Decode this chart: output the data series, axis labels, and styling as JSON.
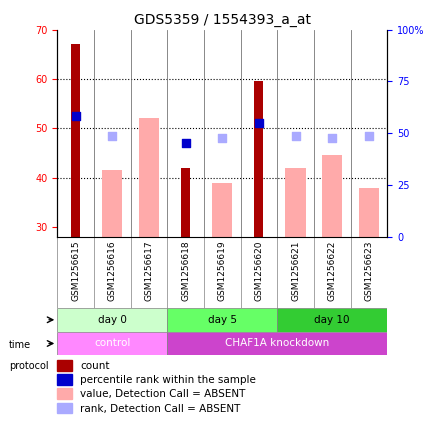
{
  "title": "GDS5359 / 1554393_a_at",
  "samples": [
    "GSM1256615",
    "GSM1256616",
    "GSM1256617",
    "GSM1256618",
    "GSM1256619",
    "GSM1256620",
    "GSM1256621",
    "GSM1256622",
    "GSM1256623"
  ],
  "count_values": [
    67.0,
    null,
    null,
    42.0,
    null,
    59.5,
    null,
    null,
    null
  ],
  "percentile_values": [
    52.5,
    null,
    null,
    47.0,
    null,
    51.0,
    null,
    null,
    null
  ],
  "absent_value_values": [
    null,
    41.5,
    52.0,
    null,
    39.0,
    null,
    42.0,
    44.5,
    38.0
  ],
  "absent_rank_values": [
    null,
    48.5,
    null,
    null,
    48.0,
    null,
    48.5,
    48.0,
    48.5
  ],
  "ylim_left": [
    28,
    70
  ],
  "ylim_right": [
    0,
    100
  ],
  "yticks_left": [
    30,
    40,
    50,
    60,
    70
  ],
  "yticks_right": [
    0,
    25,
    50,
    75,
    100
  ],
  "ytick_labels_right": [
    "0",
    "25",
    "50",
    "75",
    "100%"
  ],
  "time_groups": [
    {
      "label": "day 0",
      "start": 0,
      "end": 3,
      "color": "#ccffcc"
    },
    {
      "label": "day 5",
      "start": 3,
      "end": 6,
      "color": "#66ff66"
    },
    {
      "label": "day 10",
      "start": 6,
      "end": 9,
      "color": "#33cc33"
    }
  ],
  "protocol_groups": [
    {
      "label": "control",
      "start": 0,
      "end": 3,
      "color": "#ff88ff"
    },
    {
      "label": "CHAF1A knockdown",
      "start": 3,
      "end": 9,
      "color": "#cc44cc"
    }
  ],
  "color_count": "#aa0000",
  "color_percentile": "#0000cc",
  "color_absent_value": "#ffaaaa",
  "color_absent_rank": "#aaaaff",
  "bar_width": 0.55,
  "dot_size": 40,
  "legend_items": [
    {
      "color": "#aa0000",
      "label": "count"
    },
    {
      "color": "#0000cc",
      "label": "percentile rank within the sample"
    },
    {
      "color": "#ffaaaa",
      "label": "value, Detection Call = ABSENT"
    },
    {
      "color": "#aaaaff",
      "label": "rank, Detection Call = ABSENT"
    }
  ]
}
